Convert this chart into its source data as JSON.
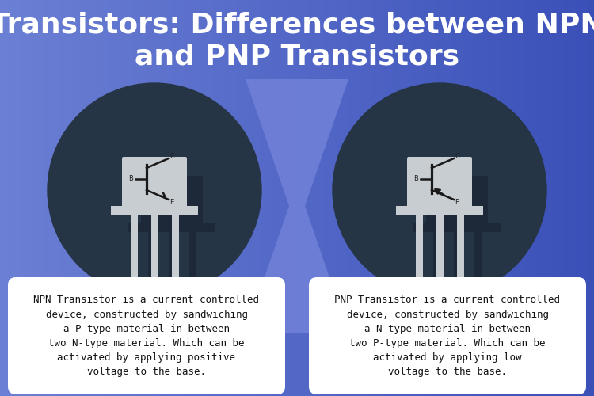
{
  "title_line1": "Transistors: Differences between NPN",
  "title_line2": "and PNP Transistors",
  "title_fontsize": 26,
  "title_color": "#ffffff",
  "bg_left": "#6B7FD4",
  "bg_right": "#4A5CC4",
  "circle_color": "#263545",
  "shadow_color": "#1a2535",
  "body_color": "#C8CDD1",
  "center_poly_color": "#7080D8",
  "text_box_color": "#ffffff",
  "text_color": "#111111",
  "npn_text": "NPN Transistor is a current controlled\ndevice, constructed by sandwiching\na P-type material in between\ntwo N-type material. Which can be\nactivated by applying positive\nvoltage to the base.",
  "pnp_text": "PNP Transistor is a current controlled\ndevice, constructed by sandwiching\na N-type material in between\ntwo P-type material. Which can be\nactivated by applying low\nvoltage to the base.",
  "figsize": [
    7.5,
    5.0
  ],
  "dpi": 100
}
